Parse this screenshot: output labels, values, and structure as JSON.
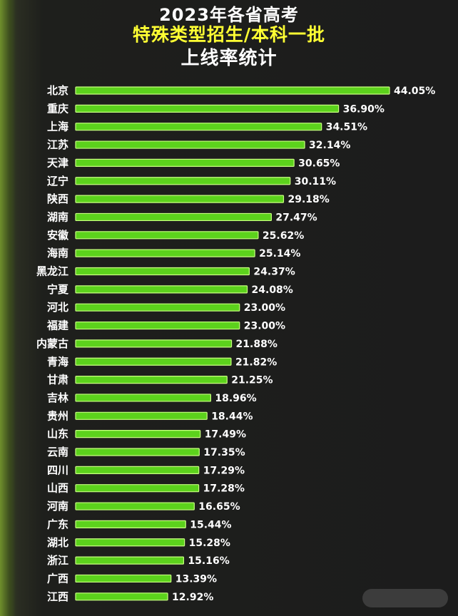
{
  "title": [
    "2023年各省高考",
    "特殊类型招生/本科一批",
    "上线率统计"
  ],
  "colors": {
    "bar": "#5cd21c",
    "title_highlight": "#ffff33",
    "background": "#1c1c1c"
  },
  "chart_data": {
    "type": "bar",
    "orientation": "horizontal",
    "categories": [
      "北京",
      "重庆",
      "上海",
      "江苏",
      "天津",
      "辽宁",
      "陕西",
      "湖南",
      "安徽",
      "海南",
      "黑龙江",
      "宁夏",
      "河北",
      "福建",
      "内蒙古",
      "青海",
      "甘肃",
      "吉林",
      "贵州",
      "山东",
      "云南",
      "四川",
      "山西",
      "河南",
      "广东",
      "湖北",
      "浙江",
      "广西",
      "江西"
    ],
    "values": [
      44.05,
      36.9,
      34.51,
      32.14,
      30.65,
      30.11,
      29.18,
      27.47,
      25.62,
      25.14,
      24.37,
      24.08,
      23.0,
      23.0,
      21.88,
      21.82,
      21.25,
      18.96,
      18.44,
      17.49,
      17.35,
      17.29,
      17.28,
      16.65,
      15.44,
      15.28,
      15.16,
      13.39,
      12.92
    ],
    "value_labels": [
      "44.05%",
      "36.90%",
      "34.51%",
      "32.14%",
      "30.65%",
      "30.11%",
      "29.18%",
      "27.47%",
      "25.62%",
      "25.14%",
      "24.37%",
      "24.08%",
      "23.00%",
      "23.00%",
      "21.88%",
      "21.82%",
      "21.25%",
      "18.96%",
      "18.44%",
      "17.49%",
      "17.35%",
      "17.29%",
      "17.28%",
      "16.65%",
      "15.44%",
      "15.28%",
      "15.16%",
      "13.39%",
      "12.92%"
    ],
    "grid": false,
    "legend": "none"
  }
}
